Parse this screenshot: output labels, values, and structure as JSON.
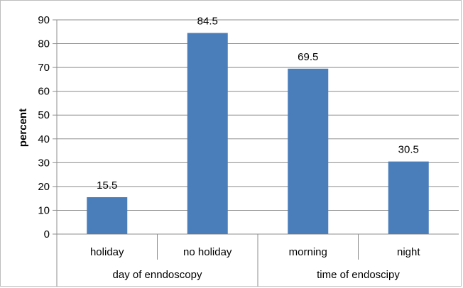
{
  "chart_data": {
    "type": "bar",
    "title": "",
    "xlabel": "",
    "ylabel": "percent",
    "ylim": [
      0,
      90
    ],
    "yticks": [
      0,
      10,
      20,
      30,
      40,
      50,
      60,
      70,
      80,
      90
    ],
    "grid": true,
    "categories": [
      "holiday",
      "no holiday",
      "morning",
      "night"
    ],
    "groups": [
      {
        "label": "day of enndoscopy",
        "categories": [
          "holiday",
          "no holiday"
        ]
      },
      {
        "label": "time of endoscipy",
        "categories": [
          "morning",
          "night"
        ]
      }
    ],
    "values": [
      15.5,
      84.5,
      69.5,
      30.5
    ],
    "data_labels": [
      "15.5",
      "84.5",
      "69.5",
      "30.5"
    ],
    "bar_color": "#4a7ebb"
  }
}
